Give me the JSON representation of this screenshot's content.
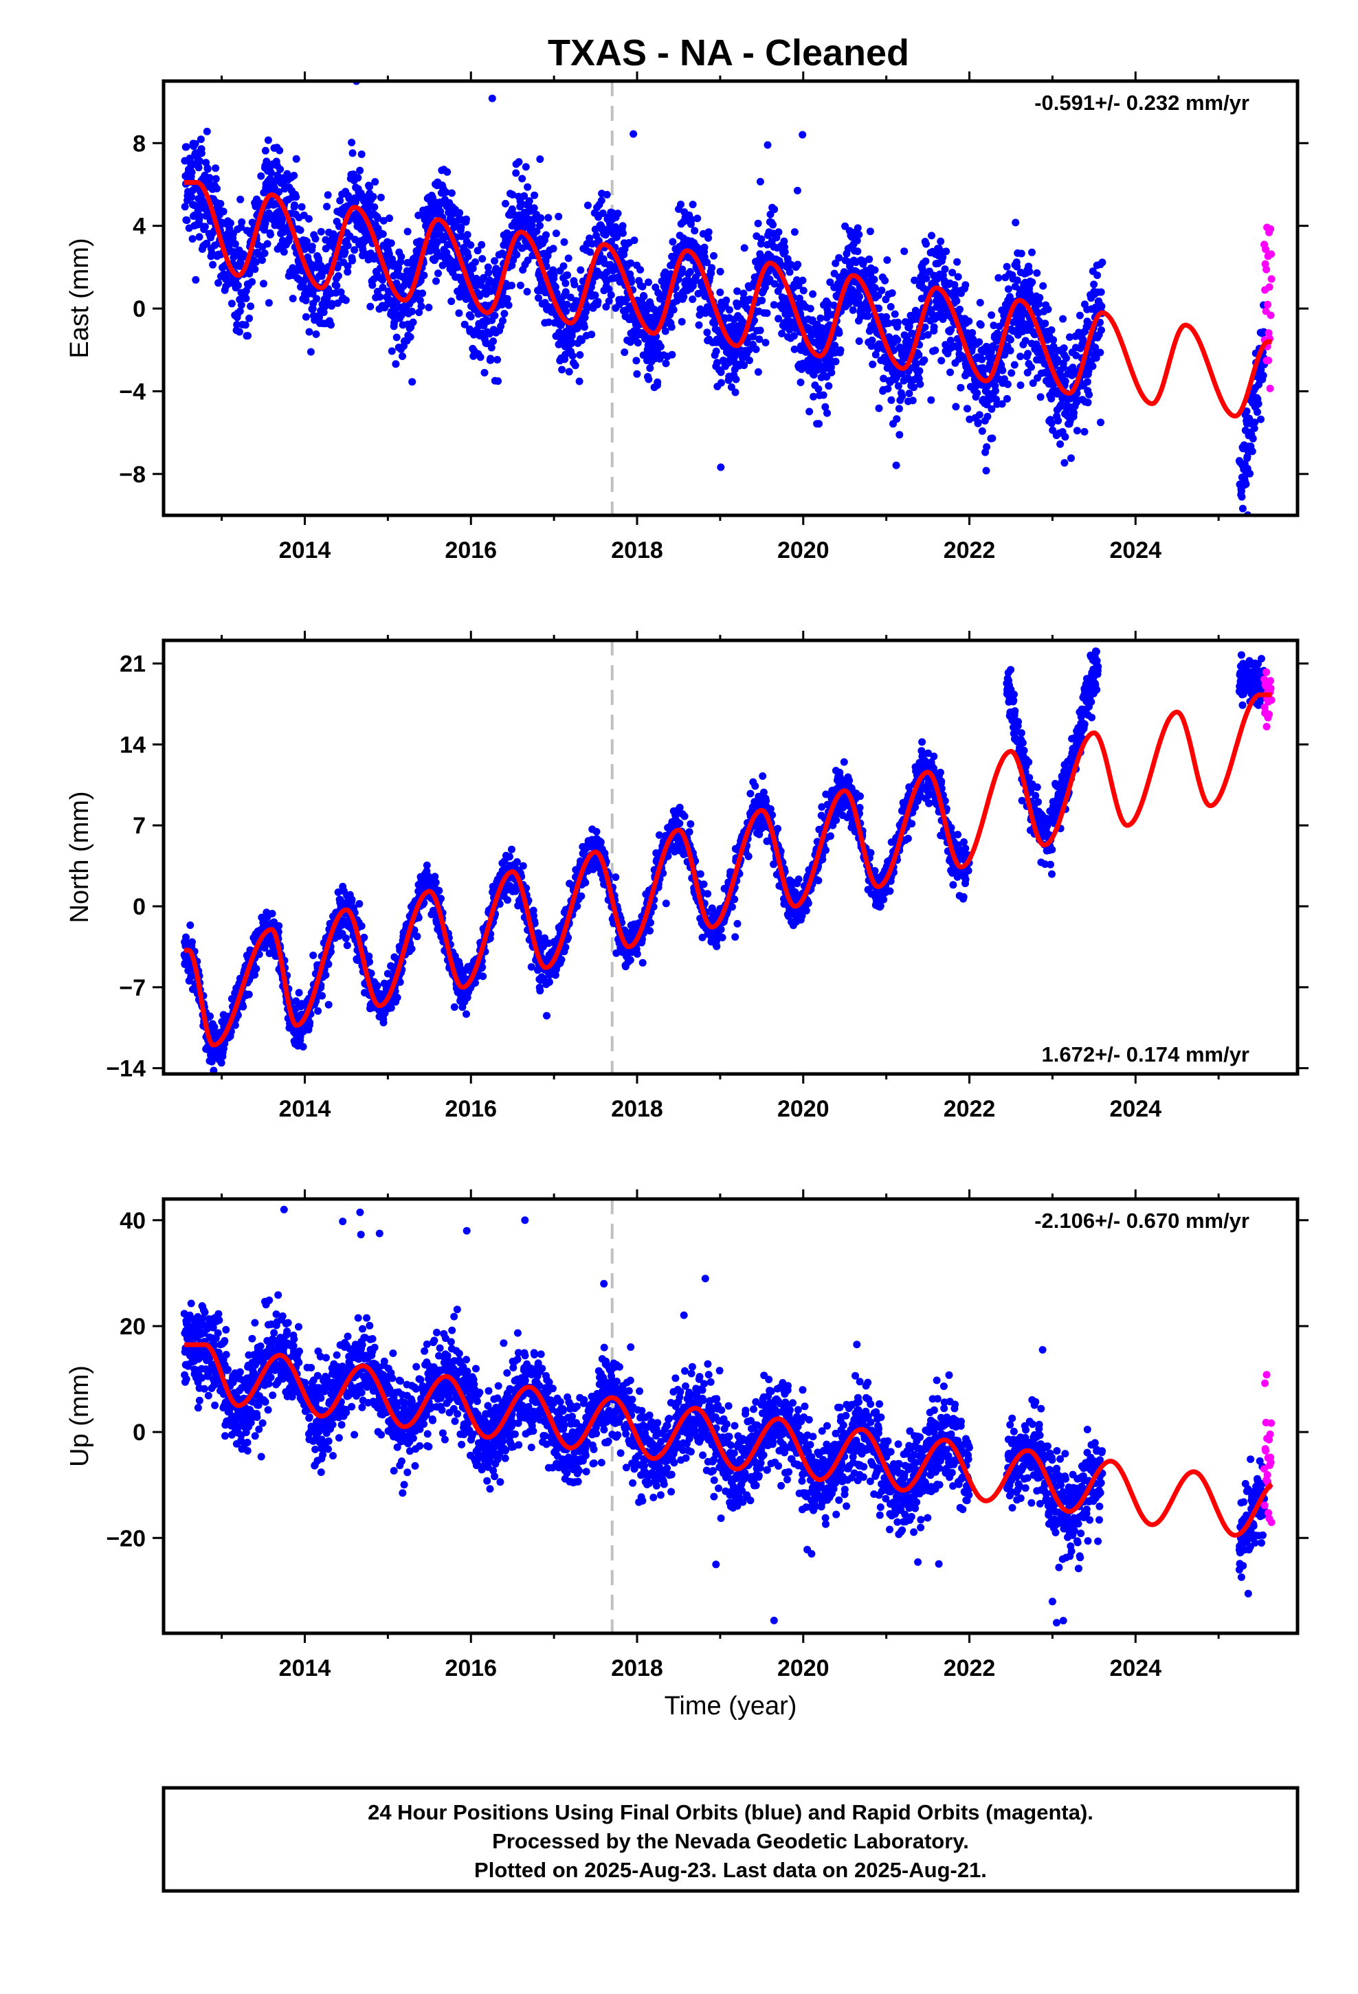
{
  "title": "TXAS  - NA - Cleaned",
  "caption": [
    "24 Hour Positions Using Final Orbits (blue) and Rapid Orbits (magenta).",
    "Processed by the Nevada Geodetic Laboratory.",
    "Plotted on 2025-Aug-23. Last data on 2025-Aug-21."
  ],
  "colors": {
    "final_orbits": "#0000ff",
    "rapid_orbits": "#ff00ff",
    "model": "#ff0000",
    "reference_line": "#c0c0c0",
    "frame": "#000000"
  },
  "chart_data": [
    {
      "type": "scatter",
      "component": "East",
      "ylabel": "East (mm)",
      "xlabel": "",
      "rate_text": "-0.591+/- 0.232 mm/yr",
      "rate_position": "top-right",
      "xlim": [
        2012.3,
        2025.95
      ],
      "ylim": [
        -10,
        11
      ],
      "xticks": [
        2014,
        2016,
        2018,
        2020,
        2022,
        2024
      ],
      "xtick_labels": [
        "2014",
        "2016",
        "2018",
        "2020",
        "2022",
        "2024"
      ],
      "yticks": [
        -8,
        -4,
        0,
        4,
        8
      ],
      "ytick_labels": [
        "−8",
        "−4",
        "0",
        "4",
        "8"
      ],
      "reference_epoch": 2017.7,
      "final_data_range": [
        2012.55,
        2023.6
      ],
      "final_gap_after": 2023.6,
      "final_resume": 2025.25,
      "rapid_data_range": [
        2025.55,
        2025.64
      ],
      "model": {
        "rate_mm_per_yr": -0.591,
        "annual_peaks": [
          [
            2012.7,
            6.1
          ],
          [
            2013.6,
            5.5
          ],
          [
            2014.6,
            4.9
          ],
          [
            2015.6,
            4.3
          ],
          [
            2016.6,
            3.7
          ],
          [
            2017.6,
            3.1
          ],
          [
            2018.6,
            2.8
          ],
          [
            2019.6,
            2.2
          ],
          [
            2020.6,
            1.6
          ],
          [
            2021.6,
            1.0
          ],
          [
            2022.6,
            0.4
          ],
          [
            2023.6,
            -0.2
          ],
          [
            2024.6,
            -0.8
          ],
          [
            2025.6,
            -1.6
          ]
        ],
        "annual_troughs": [
          [
            2013.2,
            1.6
          ],
          [
            2014.2,
            1.0
          ],
          [
            2015.2,
            0.4
          ],
          [
            2016.2,
            -0.2
          ],
          [
            2017.2,
            -0.7
          ],
          [
            2018.2,
            -1.2
          ],
          [
            2019.2,
            -1.8
          ],
          [
            2020.2,
            -2.3
          ],
          [
            2021.2,
            -2.9
          ],
          [
            2022.2,
            -3.5
          ],
          [
            2023.2,
            -4.1
          ],
          [
            2024.2,
            -4.6
          ],
          [
            2025.2,
            -5.2
          ]
        ]
      }
    },
    {
      "type": "scatter",
      "component": "North",
      "ylabel": "North (mm)",
      "xlabel": "",
      "rate_text": "1.672+/- 0.174 mm/yr",
      "rate_position": "bottom-right",
      "xlim": [
        2012.3,
        2025.95
      ],
      "ylim": [
        -14.5,
        23
      ],
      "xticks": [
        2014,
        2016,
        2018,
        2020,
        2022,
        2024
      ],
      "xtick_labels": [
        "2014",
        "2016",
        "2018",
        "2020",
        "2022",
        "2024"
      ],
      "yticks": [
        -14,
        -7,
        0,
        7,
        14,
        21
      ],
      "ytick_labels": [
        "−14",
        "−7",
        "0",
        "7",
        "14",
        "21"
      ],
      "reference_epoch": 2017.7,
      "final_data_range": [
        2012.55,
        2022.0
      ],
      "final_offset_segment": [
        2022.45,
        2023.55
      ],
      "final_resume": 2025.25,
      "rapid_data_range": [
        2025.55,
        2025.64
      ],
      "model": {
        "rate_mm_per_yr": 1.672,
        "annual_peaks": [
          [
            2012.6,
            -3.8
          ],
          [
            2013.6,
            -2.0
          ],
          [
            2014.5,
            -0.3
          ],
          [
            2015.5,
            1.3
          ],
          [
            2016.5,
            3.0
          ],
          [
            2017.5,
            4.7
          ],
          [
            2018.5,
            6.6
          ],
          [
            2019.5,
            8.3
          ],
          [
            2020.5,
            10.0
          ],
          [
            2021.5,
            11.6
          ],
          [
            2022.5,
            13.4
          ],
          [
            2023.5,
            15.0
          ],
          [
            2024.5,
            16.8
          ],
          [
            2025.5,
            18.3
          ]
        ],
        "annual_troughs": [
          [
            2012.9,
            -12.0
          ],
          [
            2013.9,
            -10.3
          ],
          [
            2014.9,
            -8.6
          ],
          [
            2015.9,
            -7.0
          ],
          [
            2016.9,
            -5.3
          ],
          [
            2017.9,
            -3.5
          ],
          [
            2018.9,
            -1.8
          ],
          [
            2019.9,
            0.0
          ],
          [
            2020.9,
            1.7
          ],
          [
            2021.9,
            3.4
          ],
          [
            2022.9,
            5.3
          ],
          [
            2023.9,
            7.0
          ],
          [
            2024.9,
            8.7
          ]
        ]
      }
    },
    {
      "type": "scatter",
      "component": "Up",
      "ylabel": "Up (mm)",
      "xlabel": "Time (year)",
      "rate_text": "-2.106+/- 0.670 mm/yr",
      "rate_position": "top-right",
      "xlim": [
        2012.3,
        2025.95
      ],
      "ylim": [
        -38,
        44
      ],
      "xticks": [
        2014,
        2016,
        2018,
        2020,
        2022,
        2024
      ],
      "xtick_labels": [
        "2014",
        "2016",
        "2018",
        "2020",
        "2022",
        "2024"
      ],
      "yticks": [
        -20,
        0,
        20,
        40
      ],
      "ytick_labels": [
        "−20",
        "0",
        "20",
        "40"
      ],
      "reference_epoch": 2017.7,
      "final_data_range": [
        2012.55,
        2023.6
      ],
      "final_gap": [
        2022.0,
        2022.45
      ],
      "final_resume": 2025.25,
      "rapid_data_range": [
        2025.55,
        2025.64
      ],
      "model": {
        "rate_mm_per_yr": -2.106,
        "annual_peaks": [
          [
            2012.8,
            16.5
          ],
          [
            2013.7,
            14.5
          ],
          [
            2014.7,
            12.5
          ],
          [
            2015.7,
            10.5
          ],
          [
            2016.7,
            8.5
          ],
          [
            2017.7,
            6.5
          ],
          [
            2018.7,
            4.5
          ],
          [
            2019.7,
            2.5
          ],
          [
            2020.7,
            0.5
          ],
          [
            2021.7,
            -1.5
          ],
          [
            2022.7,
            -3.5
          ],
          [
            2023.7,
            -5.5
          ],
          [
            2024.7,
            -7.5
          ],
          [
            2025.7,
            -9.5
          ]
        ],
        "annual_troughs": [
          [
            2013.2,
            5.0
          ],
          [
            2014.2,
            3.0
          ],
          [
            2015.2,
            1.0
          ],
          [
            2016.2,
            -1.0
          ],
          [
            2017.2,
            -3.0
          ],
          [
            2018.2,
            -5.0
          ],
          [
            2019.2,
            -7.0
          ],
          [
            2020.2,
            -9.0
          ],
          [
            2021.2,
            -11.0
          ],
          [
            2022.2,
            -13.0
          ],
          [
            2023.2,
            -15.0
          ],
          [
            2024.2,
            -17.5
          ],
          [
            2025.2,
            -19.5
          ]
        ],
        "outliers": [
          [
            2013.75,
            42
          ],
          [
            2015.95,
            38
          ],
          [
            2014.9,
            37.5
          ],
          [
            2016.65,
            40
          ],
          [
            2017.6,
            28
          ],
          [
            2023.0,
            -32
          ],
          [
            2023.05,
            -36
          ],
          [
            2025.25,
            -26
          ],
          [
            2018.95,
            -25
          ],
          [
            2020.1,
            -23
          ]
        ]
      }
    }
  ]
}
